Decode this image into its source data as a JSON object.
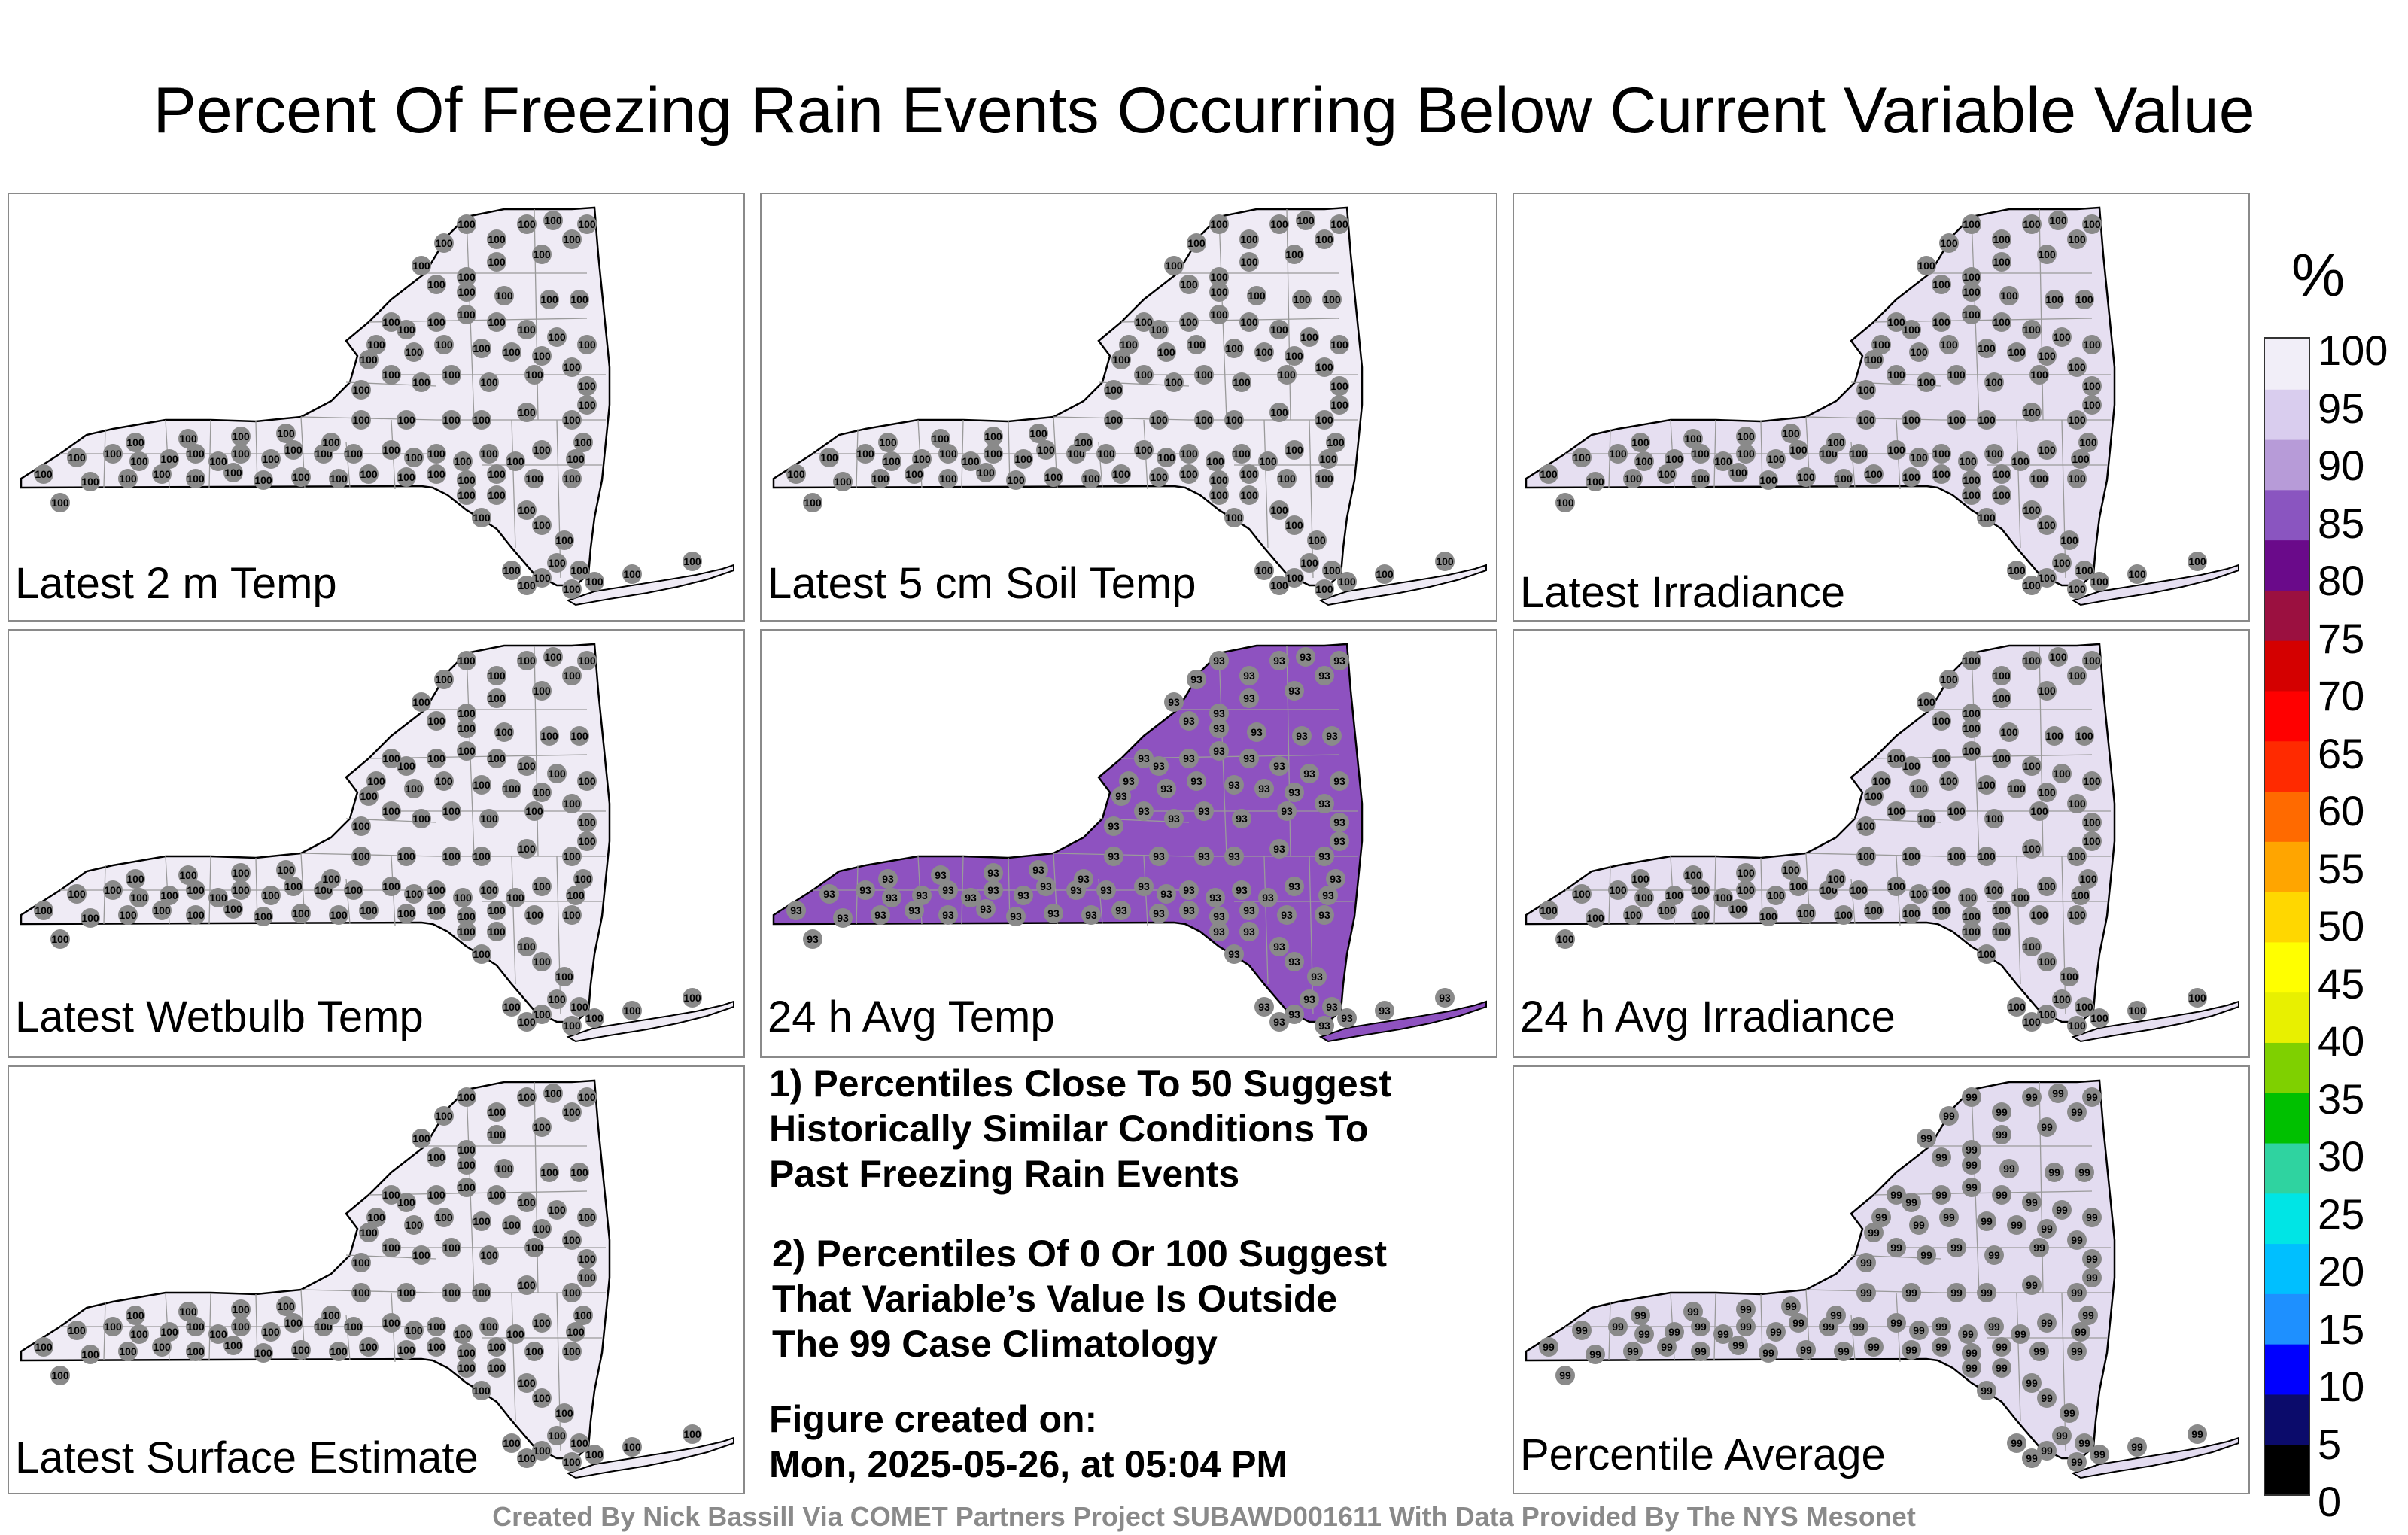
{
  "title": "Percent Of Freezing Rain Events Occurring Below Current Variable Value",
  "colorbar": {
    "unit": "%",
    "ticks": [
      "100",
      "95",
      "90",
      "85",
      "80",
      "75",
      "70",
      "65",
      "60",
      "55",
      "50",
      "45",
      "40",
      "35",
      "30",
      "25",
      "20",
      "15",
      "10",
      "5",
      "0"
    ],
    "colors": [
      "#000000",
      "#0b0b6b",
      "#0000ff",
      "#1e90ff",
      "#00bfff",
      "#00e5e5",
      "#2fd3a0",
      "#00c000",
      "#7fd000",
      "#e8f000",
      "#ffff00",
      "#ffd700",
      "#ffa500",
      "#ff6a00",
      "#ff2a00",
      "#ff0000",
      "#d40000",
      "#9b1040",
      "#6a0a8a",
      "#8a55c0",
      "#b79bd8",
      "#d9cdee",
      "#f1eef8"
    ]
  },
  "panels": [
    {
      "label": "Latest 2 m Temp",
      "value": "100",
      "tint": "#efebf5"
    },
    {
      "label": "Latest 5 cm Soil Temp",
      "value": "100",
      "tint": "#efebf5"
    },
    {
      "label": "Latest Irradiance",
      "value": "100",
      "tint": "#e6dff1"
    },
    {
      "label": "Latest Wetbulb Temp",
      "value": "100",
      "tint": "#efebf5"
    },
    {
      "label": "24 h Avg Temp",
      "value": "93",
      "tint": "#8e52c0"
    },
    {
      "label": "24 h Avg Irradiance",
      "value": "100",
      "tint": "#e6dff1"
    },
    {
      "label": "Latest Surface Estimate",
      "value": "100",
      "tint": "#efebf5"
    },
    {
      "label": "Percentile Average",
      "value": "99",
      "tint": "#e3dcf0"
    }
  ],
  "notes": {
    "n1": [
      "1) Percentiles Close To 50 Suggest",
      "Historically Similar Conditions To",
      "Past Freezing Rain Events"
    ],
    "n2": [
      "2) Percentiles Of 0 Or 100 Suggest",
      "That Variable’s Value Is Outside",
      "The 99 Case Climatology"
    ],
    "created": [
      "Figure created on:",
      "Mon, 2025-05-26, at 05:04 PM"
    ]
  },
  "footer": "Created By Nick Bassill Via COMET Partners Project SUBAWD001611 With Data Provided By The NYS Mesonet"
}
